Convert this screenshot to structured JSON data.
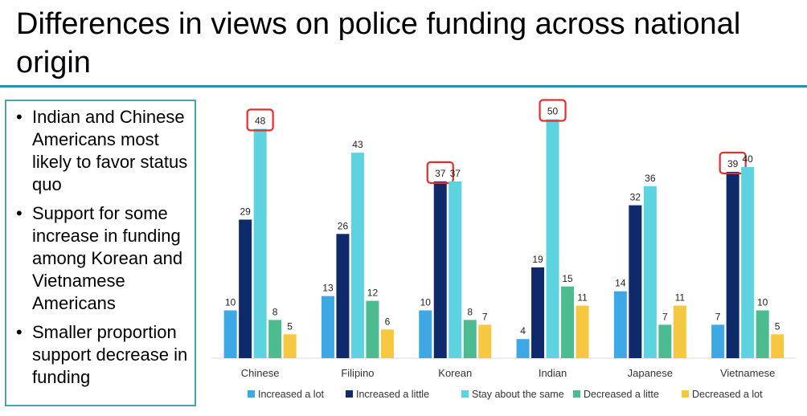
{
  "slide": {
    "title": "Differences in views on police funding across national origin",
    "bullets": [
      "Indian and Chinese Americans most likely to favor status quo",
      "Support for some increase in funding among Korean and Vietnamese Americans",
      "Smaller proportion support decrease in funding"
    ]
  },
  "colors": {
    "title_rule": "#2e8fa6",
    "box_border": "#4aa3b4",
    "highlight": "#e0302e"
  },
  "chart_data": {
    "type": "bar",
    "title": "",
    "xlabel": "",
    "ylabel": "",
    "ylim": [
      0,
      55
    ],
    "grid": false,
    "legend_position": "bottom",
    "categories": [
      "Chinese",
      "Filipino",
      "Korean",
      "Indian",
      "Japanese",
      "Vietnamese"
    ],
    "series": [
      {
        "name": "Increased a lot",
        "color": "#3ea8e5",
        "values": [
          10,
          13,
          10,
          4,
          14,
          7
        ]
      },
      {
        "name": "Increased a little",
        "color": "#0f2a6b",
        "values": [
          29,
          26,
          37,
          19,
          32,
          39
        ]
      },
      {
        "name": "Stay about the same",
        "color": "#5dd3df",
        "values": [
          48,
          43,
          37,
          50,
          36,
          40
        ]
      },
      {
        "name": "Decreased a litte",
        "color": "#4cbb8f",
        "values": [
          8,
          12,
          8,
          15,
          7,
          10
        ]
      },
      {
        "name": "Decreased a lot",
        "color": "#f6c842",
        "values": [
          5,
          6,
          7,
          11,
          11,
          5
        ]
      }
    ],
    "highlighted": [
      {
        "category": "Chinese",
        "series": "Stay about the same",
        "value": 48
      },
      {
        "category": "Korean",
        "series": "Increased a little",
        "value": 37
      },
      {
        "category": "Indian",
        "series": "Stay about the same",
        "value": 50
      },
      {
        "category": "Vietnamese",
        "series": "Increased a little",
        "value": 39
      }
    ]
  }
}
